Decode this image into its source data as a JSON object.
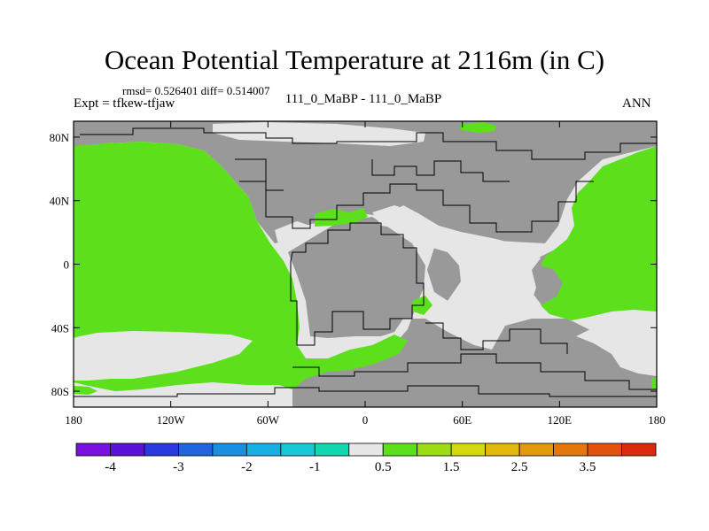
{
  "figure": {
    "title": "Ocean Potential Temperature at 2116m (in C)",
    "stats": "rmsd= 0.526401 diff= 0.514007",
    "expt": "Expt = tfkew-tfjaw",
    "case": "111_0_MaBP - 111_0_MaBP",
    "season": "ANN"
  },
  "axes": {
    "lon_ticks": [
      "180",
      "120W",
      "60W",
      "0",
      "60E",
      "120E",
      "180"
    ],
    "lon_values": [
      -180,
      -120,
      -60,
      0,
      60,
      120,
      180
    ],
    "lat_ticks": [
      "80N",
      "40N",
      "0",
      "40S",
      "80S"
    ],
    "lat_values": [
      80,
      40,
      0,
      -40,
      -80
    ],
    "lon_range": [
      -180,
      180
    ],
    "lat_range": [
      -90,
      90
    ]
  },
  "colors": {
    "land": "#999999",
    "near_zero": "#e6e6e6",
    "warm_0_5_1_0": "#5ce01c",
    "outline": "#000000"
  },
  "colorbar": {
    "labels": [
      "-4",
      "-3",
      "-2",
      "-1",
      "0.5",
      "1.5",
      "2.5",
      "3.5"
    ],
    "bins": [
      {
        "color": "#7a10e0"
      },
      {
        "color": "#5a12d8"
      },
      {
        "color": "#2a3adf"
      },
      {
        "color": "#1f64dd"
      },
      {
        "color": "#1a8ee0"
      },
      {
        "color": "#16b0e4"
      },
      {
        "color": "#16c8d8"
      },
      {
        "color": "#12d8b0"
      },
      {
        "color": "#e6e6e6"
      },
      {
        "color": "#5ce01c"
      },
      {
        "color": "#9cdc12"
      },
      {
        "color": "#d2d90e"
      },
      {
        "color": "#e2b80c"
      },
      {
        "color": "#e3990c"
      },
      {
        "color": "#e3770c"
      },
      {
        "color": "#e2520c"
      },
      {
        "color": "#dc2a0c"
      }
    ]
  }
}
